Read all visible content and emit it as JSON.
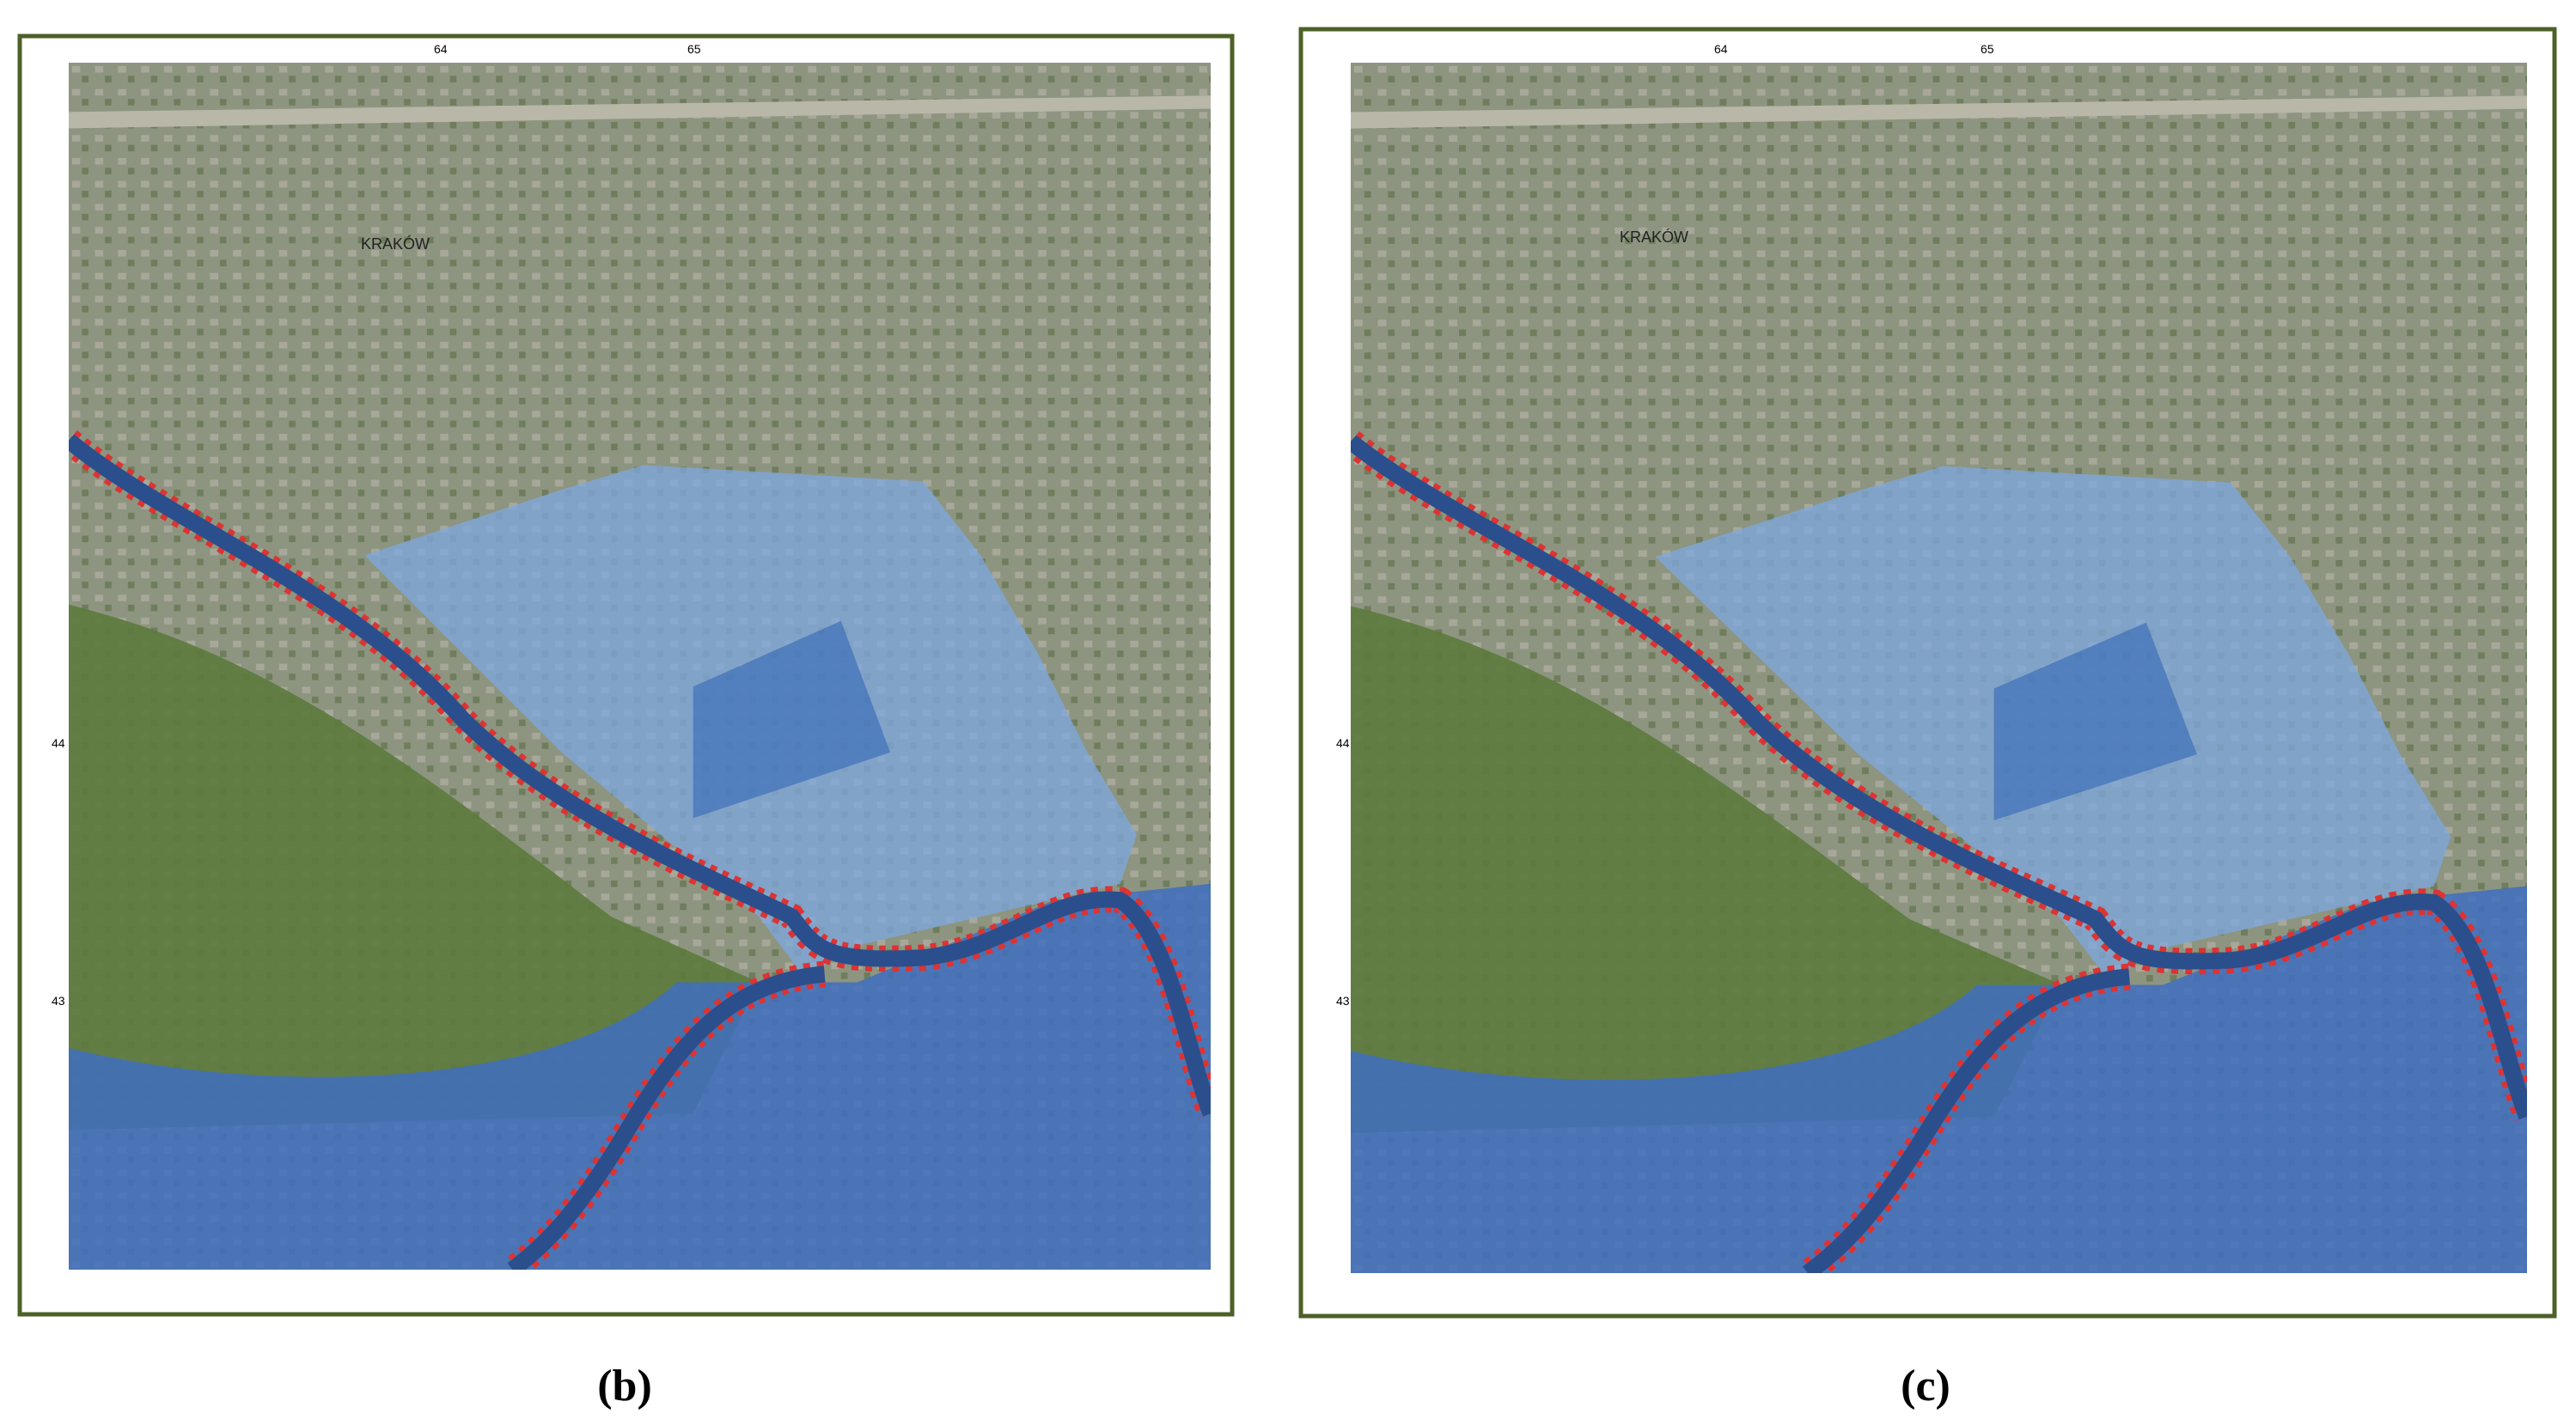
{
  "panels": [
    {
      "caption": "(b)",
      "city": "KRAKÓW",
      "grid_x": [
        "64",
        "65"
      ],
      "grid_y": [
        "44",
        "43"
      ]
    },
    {
      "caption": "(c)",
      "city": "KRAKÓW",
      "grid_x": [
        "64",
        "65"
      ],
      "grid_y": [
        "44",
        "43"
      ]
    }
  ]
}
